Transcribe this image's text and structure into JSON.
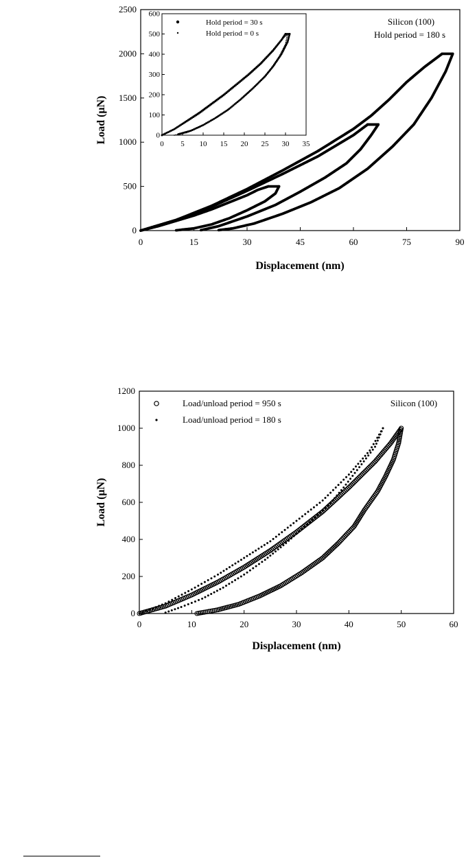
{
  "chart_data": [
    {
      "type": "line",
      "xlabel": "Displacement (nm)",
      "ylabel_prefix": "Load",
      "ylabel": "Load (μN)",
      "xlim": [
        0,
        90
      ],
      "ylim": [
        0,
        2500
      ],
      "x_ticks": [
        "0",
        "15",
        "30",
        "45",
        "60",
        "75",
        "90"
      ],
      "y_ticks": [
        "0",
        "500",
        "1000",
        "1500",
        "2000",
        "2500"
      ],
      "annotations": [
        "Silicon (100)",
        "Hold period = 180 s"
      ],
      "series": [
        {
          "name": "Hold period = 180 s",
          "peak_load": 500,
          "loading": [
            [
              0,
              0
            ],
            [
              5,
              50
            ],
            [
              10,
              110
            ],
            [
              15,
              170
            ],
            [
              20,
              240
            ],
            [
              25,
              320
            ],
            [
              30,
              400
            ],
            [
              33,
              460
            ],
            [
              36,
              500
            ]
          ],
          "hold": [
            [
              36,
              500
            ],
            [
              39,
              500
            ]
          ],
          "unloading": [
            [
              39,
              500
            ],
            [
              38,
              420
            ],
            [
              35,
              330
            ],
            [
              30,
              230
            ],
            [
              25,
              140
            ],
            [
              20,
              70
            ],
            [
              15,
              25
            ],
            [
              10,
              3
            ]
          ]
        },
        {
          "name": "Hold period = 180 s",
          "peak_load": 1200,
          "loading": [
            [
              0,
              0
            ],
            [
              10,
              120
            ],
            [
              20,
              270
            ],
            [
              30,
              450
            ],
            [
              40,
              640
            ],
            [
              50,
              840
            ],
            [
              55,
              960
            ],
            [
              60,
              1080
            ],
            [
              64,
              1200
            ]
          ],
          "hold": [
            [
              64,
              1200
            ],
            [
              67,
              1200
            ]
          ],
          "unloading": [
            [
              67,
              1200
            ],
            [
              65,
              1080
            ],
            [
              62,
              920
            ],
            [
              58,
              760
            ],
            [
              52,
              600
            ],
            [
              45,
              440
            ],
            [
              38,
              290
            ],
            [
              30,
              160
            ],
            [
              22,
              50
            ],
            [
              17,
              5
            ]
          ]
        },
        {
          "name": "Hold period = 180 s",
          "peak_load": 2000,
          "loading": [
            [
              0,
              0
            ],
            [
              10,
              120
            ],
            [
              20,
              280
            ],
            [
              30,
              470
            ],
            [
              40,
              680
            ],
            [
              50,
              900
            ],
            [
              60,
              1150
            ],
            [
              65,
              1300
            ],
            [
              70,
              1480
            ],
            [
              75,
              1680
            ],
            [
              80,
              1850
            ],
            [
              85,
              2000
            ]
          ],
          "hold": [
            [
              85,
              2000
            ],
            [
              88,
              2000
            ]
          ],
          "unloading": [
            [
              88,
              2000
            ],
            [
              86,
              1800
            ],
            [
              82,
              1500
            ],
            [
              77,
              1200
            ],
            [
              71,
              950
            ],
            [
              64,
              700
            ],
            [
              56,
              480
            ],
            [
              48,
              320
            ],
            [
              40,
              190
            ],
            [
              32,
              80
            ],
            [
              26,
              25
            ],
            [
              22,
              5
            ]
          ]
        }
      ],
      "inset": {
        "type": "scatter",
        "xlim": [
          0,
          35
        ],
        "ylim": [
          0,
          600
        ],
        "x_ticks": [
          "0",
          "5",
          "10",
          "15",
          "20",
          "25",
          "30",
          "35"
        ],
        "y_ticks": [
          "0",
          "100",
          "200",
          "300",
          "400",
          "500",
          "600"
        ],
        "legend": [
          "Hold period = 30 s",
          "Hold period = 0 s"
        ],
        "series": [
          {
            "name": "Hold period = 30 s",
            "loading": [
              [
                0,
                0
              ],
              [
                3,
                30
              ],
              [
                6,
                70
              ],
              [
                9,
                110
              ],
              [
                12,
                155
              ],
              [
                15,
                200
              ],
              [
                18,
                250
              ],
              [
                21,
                300
              ],
              [
                24,
                355
              ],
              [
                27,
                420
              ],
              [
                29,
                470
              ],
              [
                30,
                500
              ]
            ],
            "hold": [
              [
                30,
                500
              ],
              [
                31,
                500
              ]
            ],
            "unloading": [
              [
                31,
                500
              ],
              [
                30.5,
                460
              ],
              [
                29,
                400
              ],
              [
                27,
                340
              ],
              [
                25,
                290
              ],
              [
                22,
                230
              ],
              [
                19,
                175
              ],
              [
                16,
                125
              ],
              [
                13,
                85
              ],
              [
                10,
                50
              ],
              [
                7,
                22
              ],
              [
                4,
                5
              ]
            ]
          },
          {
            "name": "Hold period = 0 s",
            "loading": [
              [
                0,
                0
              ],
              [
                3,
                28
              ],
              [
                6,
                66
              ],
              [
                9,
                105
              ],
              [
                12,
                150
              ],
              [
                15,
                195
              ],
              [
                18,
                245
              ],
              [
                21,
                295
              ],
              [
                24,
                350
              ],
              [
                27,
                415
              ],
              [
                29.5,
                480
              ],
              [
                30.5,
                500
              ]
            ],
            "unloading": [
              [
                30.5,
                500
              ],
              [
                30,
                450
              ],
              [
                28.5,
                390
              ],
              [
                26.5,
                330
              ],
              [
                24,
                270
              ],
              [
                21,
                210
              ],
              [
                18,
                158
              ],
              [
                15,
                112
              ],
              [
                12,
                72
              ],
              [
                9,
                38
              ],
              [
                6,
                12
              ],
              [
                3,
                0
              ]
            ]
          }
        ]
      }
    },
    {
      "type": "scatter",
      "xlabel": "Displacement (nm)",
      "ylabel_prefix": "Load",
      "ylabel": "Load (μN)",
      "xlim": [
        0,
        60
      ],
      "ylim": [
        0,
        1200
      ],
      "x_ticks": [
        "0",
        "10",
        "20",
        "30",
        "40",
        "50",
        "60"
      ],
      "y_ticks": [
        "0",
        "200",
        "400",
        "600",
        "800",
        "1000",
        "1200"
      ],
      "annotations": [
        "Silicon (100)"
      ],
      "legend": [
        "Load/unload period = 950 s",
        "Load/unload period = 180 s"
      ],
      "series": [
        {
          "name": "Load/unload period = 950 s",
          "marker": "open-circle",
          "loading": [
            [
              0,
              0
            ],
            [
              5,
              40
            ],
            [
              10,
              100
            ],
            [
              15,
              170
            ],
            [
              20,
              250
            ],
            [
              25,
              340
            ],
            [
              30,
              440
            ],
            [
              35,
              550
            ],
            [
              40,
              680
            ],
            [
              45,
              820
            ],
            [
              48,
              920
            ],
            [
              50,
              1000
            ]
          ],
          "unloading": [
            [
              50,
              1000
            ],
            [
              49.5,
              920
            ],
            [
              48.5,
              830
            ],
            [
              47,
              740
            ],
            [
              45.5,
              660
            ],
            [
              43,
              560
            ],
            [
              41,
              470
            ],
            [
              38,
              380
            ],
            [
              35,
              300
            ],
            [
              31,
              220
            ],
            [
              27,
              150
            ],
            [
              23,
              95
            ],
            [
              19,
              50
            ],
            [
              15,
              20
            ],
            [
              11,
              0
            ]
          ]
        },
        {
          "name": "Load/unload period = 180 s",
          "marker": "dot",
          "loading": [
            [
              0,
              0
            ],
            [
              5,
              55
            ],
            [
              10,
              130
            ],
            [
              15,
              210
            ],
            [
              20,
              300
            ],
            [
              25,
              390
            ],
            [
              30,
              500
            ],
            [
              35,
              610
            ],
            [
              40,
              750
            ],
            [
              44,
              880
            ],
            [
              46.5,
              1000
            ]
          ],
          "unloading": [
            [
              46.5,
              1000
            ],
            [
              45,
              900
            ],
            [
              42,
              790
            ],
            [
              39,
              680
            ],
            [
              36,
              580
            ],
            [
              32,
              480
            ],
            [
              28,
              380
            ],
            [
              24,
              290
            ],
            [
              20,
              210
            ],
            [
              16,
              140
            ],
            [
              12,
              80
            ],
            [
              8,
              35
            ],
            [
              5,
              5
            ]
          ]
        }
      ]
    }
  ]
}
